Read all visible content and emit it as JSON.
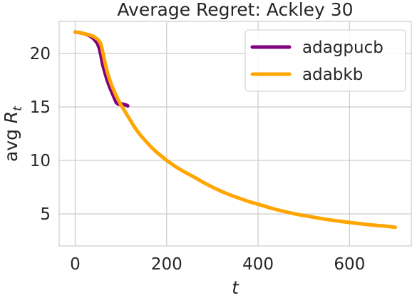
{
  "chart_data": {
    "type": "line",
    "title": "Average Regret: Ackley 30",
    "xlabel": "t",
    "ylabel": "avg R_t",
    "ylabel_main": "avg ",
    "ylabel_var": "R",
    "ylabel_sub": "t",
    "xlim": [
      -35,
      735
    ],
    "ylim": [
      2.0,
      23.0
    ],
    "xticks": [
      0,
      200,
      400,
      600
    ],
    "xtick_labels": [
      "0",
      "200",
      "400",
      "600"
    ],
    "yticks": [
      5,
      10,
      15,
      20
    ],
    "ytick_labels": [
      "5",
      "10",
      "15",
      "20"
    ],
    "grid": true,
    "legend_position": "top-right",
    "series": [
      {
        "name": "adagpucb",
        "color": "#800080",
        "x": [
          0,
          10,
          20,
          30,
          40,
          48,
          52,
          56,
          60,
          65,
          70,
          75,
          80,
          85,
          90,
          95,
          100,
          105,
          110,
          115
        ],
        "y": [
          22.0,
          21.95,
          21.85,
          21.7,
          21.4,
          21.0,
          20.6,
          19.9,
          19.0,
          18.2,
          17.5,
          16.9,
          16.4,
          15.9,
          15.4,
          15.25,
          15.3,
          15.25,
          15.2,
          15.1
        ]
      },
      {
        "name": "adabkb",
        "color": "#FFA500",
        "x": [
          0,
          10,
          20,
          30,
          40,
          50,
          55,
          58,
          62,
          66,
          70,
          75,
          80,
          85,
          90,
          100,
          110,
          120,
          130,
          140,
          150,
          165,
          180,
          200,
          220,
          240,
          260,
          280,
          300,
          320,
          340,
          360,
          380,
          400,
          420,
          440,
          460,
          480,
          500,
          520,
          540,
          560,
          580,
          600,
          620,
          640,
          660,
          680,
          700
        ],
        "y": [
          22.0,
          21.95,
          21.85,
          21.75,
          21.6,
          21.3,
          21.0,
          20.6,
          19.8,
          19.0,
          18.3,
          17.6,
          17.0,
          16.5,
          16.0,
          15.2,
          14.5,
          13.8,
          13.1,
          12.5,
          12.0,
          11.3,
          10.7,
          10.0,
          9.4,
          8.9,
          8.45,
          7.95,
          7.5,
          7.1,
          6.75,
          6.45,
          6.15,
          5.9,
          5.65,
          5.4,
          5.2,
          5.0,
          4.85,
          4.7,
          4.55,
          4.42,
          4.3,
          4.2,
          4.1,
          4.0,
          3.92,
          3.85,
          3.75
        ]
      }
    ]
  }
}
